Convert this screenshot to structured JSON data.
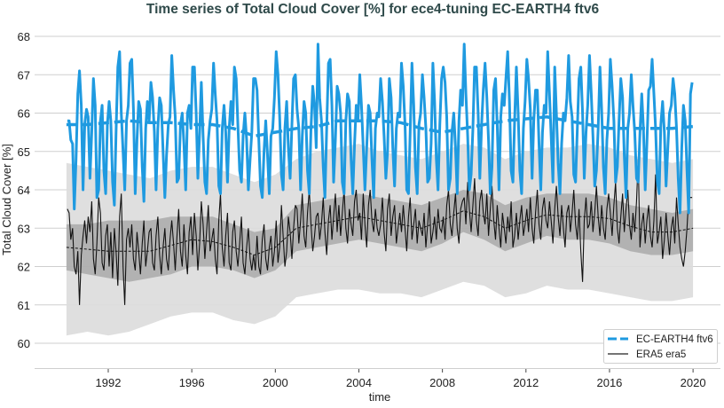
{
  "chart_data": {
    "type": "line",
    "title": "Time series of Total Cloud Cover [%] for ece4-tuning EC-EARTH4 ftv6",
    "xlabel": "time",
    "ylabel": "Total Cloud Cover [%]",
    "xlim": [
      1989.3,
      2021.3
    ],
    "ylim": [
      59.33,
      68.4
    ],
    "x_ticks": [
      "1992",
      "1996",
      "2000",
      "2004",
      "2008",
      "2012",
      "2016",
      "2020"
    ],
    "y_ticks": [
      "60",
      "61",
      "62",
      "63",
      "64",
      "65",
      "66",
      "67",
      "68"
    ],
    "grid": "horizontal",
    "legend_position": "bottom-right",
    "legend": [
      {
        "label": "EC-EARTH4 ftv6",
        "style": "dashed",
        "color": "#1f9ae0"
      },
      {
        "label": "ERA5 era5",
        "style": "solid",
        "color": "#000000"
      }
    ],
    "start_year": 1990,
    "monthly": {
      "EC-EARTH4 ftv6": [
        65.8,
        65.8,
        65.3,
        65.2,
        63.5,
        64.8,
        66.5,
        67.1,
        66.2,
        64.0,
        65.7,
        66.1,
        65.9,
        64.3,
        65.5,
        66.9,
        66.2,
        63.8,
        64.0,
        65.8,
        66.2,
        64.5,
        63.9,
        65.7,
        66.3,
        65.8,
        64.2,
        63.6,
        65.5,
        67.2,
        67.6,
        66.0,
        65.0,
        64.0,
        65.8,
        66.2,
        67.3,
        67.4,
        66.1,
        63.9,
        65.3,
        66.3,
        66.1,
        64.6,
        63.7,
        65.6,
        66.3,
        65.8,
        66.8,
        66.4,
        65.5,
        64.0,
        65.6,
        66.4,
        66.2,
        65.0,
        63.8,
        64.9,
        65.7,
        65.9,
        67.5,
        66.6,
        65.9,
        64.2,
        64.3,
        65.7,
        66.0,
        65.2,
        64.0,
        66.0,
        66.2,
        65.6,
        67.2,
        67.2,
        66.0,
        64.3,
        65.5,
        66.8,
        65.4,
        64.2,
        63.9,
        65.3,
        65.8,
        66.1,
        67.3,
        66.5,
        65.8,
        64.1,
        63.9,
        65.6,
        66.2,
        65.5,
        64.2,
        65.6,
        66.3,
        65.7,
        67.2,
        66.9,
        65.7,
        64.5,
        64.2,
        65.4,
        66.0,
        65.3,
        64.0,
        64.8,
        65.5,
        66.9,
        66.9,
        66.6,
        65.3,
        64.1,
        63.8,
        65.0,
        65.8,
        64.9,
        63.9,
        65.4,
        65.6,
        66.4,
        67.6,
        67.0,
        65.9,
        64.4,
        64.0,
        65.6,
        66.3,
        65.1,
        64.3,
        65.7,
        66.9,
        67.0,
        66.1,
        65.6,
        64.0,
        65.4,
        66.3,
        66.0,
        64.5,
        63.9,
        65.6,
        66.7,
        66.2,
        65.1,
        67.8,
        66.4,
        65.8,
        64.6,
        63.8,
        65.6,
        67.3,
        67.4,
        66.2,
        64.2,
        65.3,
        66.7,
        66.5,
        66.0,
        64.2,
        63.9,
        65.8,
        66.5,
        66.3,
        64.8,
        63.9,
        65.2,
        66.2,
        65.8,
        67.0,
        66.2,
        65.1,
        64.0,
        65.1,
        66.2,
        66.0,
        64.8,
        63.8,
        65.6,
        66.0,
        65.9,
        66.9,
        66.3,
        65.4,
        64.3,
        65.0,
        66.9,
        66.4,
        65.1,
        64.1,
        65.6,
        66.0,
        65.9,
        67.3,
        66.7,
        65.7,
        64.0,
        63.9,
        65.5,
        67.3,
        66.2,
        64.6,
        63.9,
        65.7,
        66.0,
        67.0,
        66.4,
        65.6,
        64.2,
        64.3,
        65.2,
        67.3,
        66.3,
        64.8,
        64.0,
        65.7,
        66.9,
        67.2,
        66.8,
        65.9,
        64.0,
        64.3,
        65.5,
        66.0,
        65.1,
        63.9,
        65.8,
        66.6,
        66.2,
        67.8,
        66.5,
        65.4,
        64.0,
        64.4,
        65.6,
        67.2,
        67.2,
        66.0,
        64.3,
        65.7,
        66.6,
        67.3,
        66.4,
        65.3,
        63.9,
        64.6,
        66.6,
        66.9,
        65.7,
        64.0,
        65.9,
        66.5,
        66.2,
        66.9,
        67.6,
        66.3,
        64.5,
        64.2,
        65.8,
        67.2,
        66.0,
        64.5,
        63.9,
        65.6,
        66.3,
        67.4,
        66.9,
        66.1,
        64.3,
        65.8,
        66.6,
        66.6,
        65.2,
        64.0,
        65.5,
        66.2,
        66.0,
        67.6,
        66.5,
        65.4,
        64.2,
        67.2,
        66.0,
        64.7,
        63.9,
        65.2,
        66.0,
        65.8,
        66.4,
        67.5,
        66.3,
        65.9,
        64.4,
        64.2,
        65.6,
        66.9,
        67.2,
        66.0,
        64.3,
        65.5,
        66.2,
        67.5,
        66.5,
        65.4,
        64.1,
        64.5,
        65.6,
        67.2,
        66.1,
        64.6,
        63.9,
        65.3,
        66.0,
        67.4,
        66.7,
        65.8,
        64.2,
        64.6,
        65.8,
        66.9,
        66.4,
        64.9,
        63.8,
        65.6,
        66.0,
        67.0,
        66.2,
        65.5,
        64.3,
        64.2,
        65.5,
        66.5,
        65.6,
        64.0,
        65.2,
        66.6,
        66.7,
        67.4,
        66.5,
        65.6,
        64.2,
        63.9,
        65.7,
        66.3,
        65.5,
        64.1,
        65.1,
        66.0,
        66.2,
        66.9,
        66.5,
        65.6,
        64.3,
        63.4,
        65.1,
        66.2,
        65.8,
        64.5,
        63.4,
        66.5,
        66.8
      ],
      "ERA5 era5": [
        63.5,
        63.4,
        62.7,
        63.0,
        62.0,
        61.8,
        62.4,
        61.0,
        62.3,
        62.8,
        63.2,
        62.6,
        63.3,
        62.9,
        63.7,
        62.2,
        61.8,
        62.6,
        63.8,
        63.4,
        62.1,
        61.9,
        62.8,
        63.1,
        62.0,
        62.9,
        61.7,
        63.0,
        62.4,
        61.5,
        63.3,
        63.9,
        62.0,
        61.0,
        62.7,
        63.0,
        62.5,
        63.1,
        62.2,
        61.9,
        62.9,
        62.4,
        61.8,
        62.6,
        63.2,
        62.0,
        62.4,
        62.9,
        63.0,
        62.1,
        61.9,
        62.8,
        63.3,
        62.3,
        61.8,
        62.5,
        63.0,
        62.2,
        61.9,
        62.7,
        63.2,
        62.6,
        61.9,
        62.8,
        63.5,
        62.4,
        62.0,
        63.1,
        62.3,
        61.8,
        62.9,
        63.3,
        62.3,
        63.4,
        62.8,
        61.9,
        62.6,
        63.7,
        63.1,
        62.2,
        62.9,
        63.6,
        62.4,
        62.7,
        63.0,
        62.2,
        61.8,
        63.2,
        63.9,
        62.5,
        62.0,
        62.8,
        63.4,
        62.1,
        61.9,
        62.9,
        63.2,
        62.4,
        62.0,
        62.6,
        63.3,
        62.1,
        61.8,
        62.5,
        63.0,
        62.2,
        61.9,
        62.3,
        61.9,
        62.8,
        62.0,
        61.8,
        62.7,
        63.1,
        62.2,
        61.9,
        62.5,
        62.8,
        62.0,
        62.4,
        63.2,
        62.1,
        62.5,
        63.6,
        62.8,
        62.0,
        62.4,
        63.3,
        62.9,
        62.2,
        63.0,
        63.6,
        63.5,
        62.6,
        63.2,
        63.9,
        62.8,
        62.5,
        63.4,
        64.0,
        63.1,
        62.4,
        62.8,
        63.3,
        63.4,
        62.7,
        63.1,
        63.8,
        62.9,
        62.3,
        63.2,
        63.6,
        62.7,
        63.3,
        63.9,
        62.9,
        63.6,
        62.8,
        63.4,
        64.0,
        63.0,
        62.6,
        63.5,
        63.1,
        62.8,
        63.7,
        64.0,
        63.2,
        63.4,
        62.7,
        63.9,
        63.1,
        62.5,
        63.6,
        64.0,
        63.2,
        62.9,
        63.5,
        63.0,
        62.8,
        63.1,
        63.8,
        62.9,
        62.4,
        63.5,
        63.9,
        62.8,
        63.3,
        63.6,
        62.6,
        63.0,
        63.4,
        62.9,
        63.6,
        63.0,
        62.4,
        63.3,
        63.8,
        62.7,
        63.1,
        63.5,
        62.6,
        63.2,
        63.0,
        62.8,
        63.4,
        62.5,
        63.1,
        63.7,
        62.6,
        62.9,
        63.3,
        62.7,
        63.5,
        63.0,
        62.9,
        63.3,
        62.7,
        63.6,
        64.0,
        63.1,
        62.8,
        63.4,
        63.9,
        63.0,
        62.6,
        63.5,
        63.7,
        63.8,
        63.1,
        64.2,
        63.5,
        62.9,
        63.6,
        64.3,
        63.2,
        62.8,
        63.7,
        64.0,
        63.4,
        63.1,
        63.9,
        62.8,
        63.5,
        64.1,
        63.2,
        62.7,
        63.6,
        63.0,
        62.5,
        63.4,
        63.0,
        62.6,
        63.3,
        62.9,
        63.7,
        62.5,
        62.8,
        63.4,
        62.7,
        63.2,
        63.6,
        62.8,
        63.1,
        63.5,
        62.9,
        63.8,
        63.0,
        62.6,
        63.4,
        64.0,
        63.1,
        62.7,
        63.5,
        63.8,
        63.2,
        63.0,
        63.7,
        63.2,
        62.6,
        63.5,
        64.1,
        63.3,
        62.8,
        63.6,
        63.0,
        62.5,
        63.4,
        63.6,
        62.9,
        63.4,
        64.0,
        63.1,
        62.7,
        63.5,
        62.4,
        61.6,
        63.2,
        63.8,
        63.0,
        63.1,
        63.7,
        62.9,
        63.4,
        64.1,
        63.3,
        62.8,
        63.6,
        63.0,
        62.7,
        63.5,
        63.9,
        63.4,
        62.8,
        63.6,
        64.2,
        63.0,
        62.6,
        63.3,
        63.9,
        62.9,
        63.5,
        64.0,
        63.1,
        62.7,
        63.4,
        62.9,
        63.7,
        64.8,
        62.5,
        63.1,
        63.4,
        62.6,
        63.2,
        63.6,
        62.8,
        62.5,
        63.2,
        64.4,
        62.6,
        62.9,
        63.3,
        62.2,
        62.7,
        63.4,
        62.8,
        62.3,
        63.0,
        63.3,
        62.6,
        63.8,
        63.1,
        62.5,
        62.2,
        62.0,
        62.4,
        63.0,
        63.8,
        63.8,
        63.8
      ]
    },
    "annual_years": [
      1990,
      1991,
      1992,
      1993,
      1994,
      1995,
      1996,
      1997,
      1998,
      1999,
      2000,
      2001,
      2002,
      2003,
      2004,
      2005,
      2006,
      2007,
      2008,
      2009,
      2010,
      2011,
      2012,
      2013,
      2014,
      2015,
      2016,
      2017,
      2018,
      2019,
      2020
    ],
    "running_mean": {
      "EC-EARTH4 ftv6": [
        65.7,
        65.7,
        65.75,
        65.8,
        65.75,
        65.75,
        65.7,
        65.7,
        65.6,
        65.4,
        65.5,
        65.6,
        65.65,
        65.8,
        65.8,
        65.8,
        65.75,
        65.6,
        65.5,
        65.6,
        65.7,
        65.8,
        65.85,
        65.9,
        65.8,
        65.7,
        65.6,
        65.6,
        65.6,
        65.6,
        65.65
      ],
      "ERA5 era5": [
        62.5,
        62.45,
        62.4,
        62.4,
        62.4,
        62.55,
        62.7,
        62.65,
        62.5,
        62.3,
        62.5,
        63.0,
        63.1,
        63.2,
        63.3,
        63.2,
        63.1,
        63.0,
        63.2,
        63.45,
        63.3,
        63.0,
        63.2,
        63.35,
        63.3,
        63.3,
        63.25,
        63.05,
        62.9,
        62.9,
        63.0
      ]
    },
    "era5_inner_band": {
      "upper": [
        63.1,
        63.1,
        63.2,
        63.2,
        63.2,
        63.3,
        63.3,
        63.3,
        63.1,
        62.9,
        63.0,
        63.6,
        63.7,
        63.8,
        63.9,
        63.8,
        63.7,
        63.6,
        63.8,
        64.0,
        63.9,
        63.6,
        63.8,
        63.9,
        63.9,
        63.9,
        63.8,
        63.6,
        63.5,
        63.4,
        63.5
      ],
      "lower": [
        61.9,
        61.8,
        61.7,
        61.6,
        61.7,
        61.8,
        62.0,
        62.0,
        61.9,
        61.7,
        61.9,
        62.4,
        62.5,
        62.6,
        62.7,
        62.6,
        62.5,
        62.4,
        62.6,
        62.9,
        62.7,
        62.4,
        62.6,
        62.8,
        62.7,
        62.7,
        62.6,
        62.4,
        62.3,
        62.3,
        62.4
      ]
    },
    "era5_outer_band": {
      "upper": [
        64.7,
        64.6,
        64.5,
        64.4,
        64.3,
        64.5,
        64.6,
        64.6,
        64.4,
        64.2,
        64.4,
        64.8,
        65.0,
        65.1,
        65.2,
        65.0,
        64.9,
        64.8,
        65.0,
        65.2,
        65.1,
        64.8,
        65.0,
        65.1,
        65.1,
        65.2,
        65.1,
        64.9,
        64.8,
        64.7,
        64.8
      ],
      "lower": [
        60.2,
        60.3,
        60.2,
        60.3,
        60.5,
        60.7,
        60.8,
        60.8,
        60.6,
        60.5,
        60.7,
        61.2,
        61.3,
        61.4,
        61.4,
        61.3,
        61.3,
        61.2,
        61.4,
        61.6,
        61.5,
        61.2,
        61.3,
        61.5,
        61.4,
        61.4,
        61.3,
        61.2,
        61.1,
        61.1,
        61.2
      ]
    },
    "colors": {
      "model": "#1f9ae0",
      "era5": "#000000",
      "inner_band": "#8c8c8c",
      "outer_band": "#dcdcdc",
      "grid": "#cfcfcf",
      "title": "#2f4a4a"
    }
  }
}
